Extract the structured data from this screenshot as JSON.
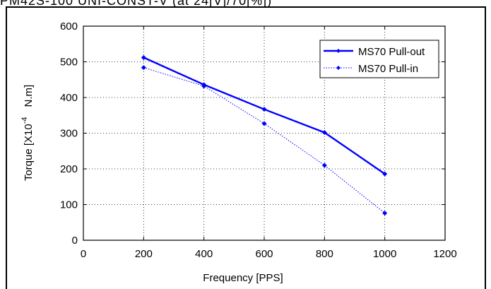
{
  "header": {
    "text": "PM42S-100 UNI-CONST-V (at 24[V]/70[%])"
  },
  "chart_data": {
    "type": "line",
    "xlabel": "Frequency [PPS]",
    "ylabel_main": "Torque [X10",
    "ylabel_exp": "-4",
    "ylabel_unit": "N.m]",
    "xlim": [
      0,
      1200
    ],
    "ylim": [
      0,
      600
    ],
    "x_ticks": [
      0,
      200,
      400,
      600,
      800,
      1000,
      1200
    ],
    "y_ticks": [
      0,
      100,
      200,
      300,
      400,
      500,
      600
    ],
    "grid": true,
    "legend_position": "top-right",
    "series": [
      {
        "name": "MS70 Pull-out",
        "style": "solid",
        "color": "#0000ff",
        "x": [
          200,
          400,
          600,
          800,
          1000
        ],
        "y": [
          512,
          436,
          367,
          302,
          186
        ]
      },
      {
        "name": "MS70 Pull-in",
        "style": "dotted",
        "color": "#0000ff",
        "x": [
          200,
          400,
          600,
          800,
          1000
        ],
        "y": [
          484,
          432,
          327,
          210,
          76
        ]
      }
    ]
  }
}
